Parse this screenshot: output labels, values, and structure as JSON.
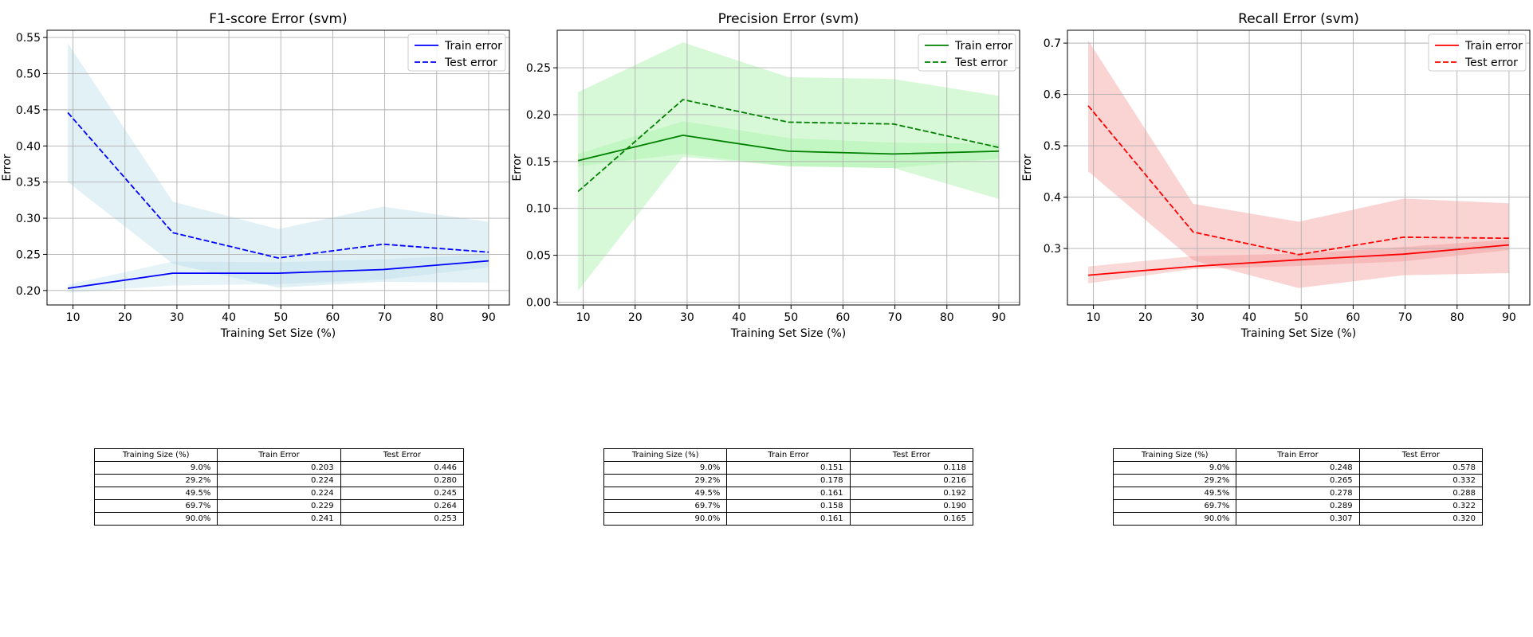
{
  "chart_data": [
    {
      "type": "line",
      "title": "F1-score Error (svm)",
      "xlabel": "Training Set Size (%)",
      "ylabel": "Error",
      "xlim": [
        5,
        94
      ],
      "ylim": [
        0.18,
        0.56
      ],
      "xticks": [
        10,
        20,
        30,
        40,
        50,
        60,
        70,
        80,
        90
      ],
      "yticks": [
        0.2,
        0.25,
        0.3,
        0.35,
        0.4,
        0.45,
        0.5,
        0.55
      ],
      "ytick_labels": [
        "0.20",
        "0.25",
        "0.30",
        "0.35",
        "0.40",
        "0.45",
        "0.50",
        "0.55"
      ],
      "grid": true,
      "legend_position": "top-right",
      "x": [
        9.0,
        29.2,
        49.5,
        69.7,
        90.0
      ],
      "series": [
        {
          "name": "Train error",
          "style": "solid",
          "values": [
            0.203,
            0.224,
            0.224,
            0.229,
            0.241
          ],
          "band_lower": [
            0.197,
            0.207,
            0.209,
            0.215,
            0.232
          ],
          "band_upper": [
            0.208,
            0.24,
            0.239,
            0.243,
            0.25
          ]
        },
        {
          "name": "Test error",
          "style": "dashed",
          "values": [
            0.446,
            0.28,
            0.245,
            0.264,
            0.253
          ],
          "band_lower": [
            0.35,
            0.237,
            0.204,
            0.212,
            0.211
          ],
          "band_upper": [
            0.542,
            0.323,
            0.285,
            0.316,
            0.295
          ]
        }
      ],
      "line_color": "#0000ff",
      "band_color": "#add8e6",
      "table": {
        "headers": [
          "Training Size (%)",
          "Train Error",
          "Test Error"
        ],
        "rows": [
          [
            "9.0%",
            "0.203",
            "0.446"
          ],
          [
            "29.2%",
            "0.224",
            "0.280"
          ],
          [
            "49.5%",
            "0.224",
            "0.245"
          ],
          [
            "69.7%",
            "0.229",
            "0.264"
          ],
          [
            "90.0%",
            "0.241",
            "0.253"
          ]
        ]
      }
    },
    {
      "type": "line",
      "title": "Precision Error (svm)",
      "xlabel": "Training Set Size (%)",
      "ylabel": "Error",
      "xlim": [
        5,
        94
      ],
      "ylim": [
        -0.003,
        0.29
      ],
      "xticks": [
        10,
        20,
        30,
        40,
        50,
        60,
        70,
        80,
        90
      ],
      "yticks": [
        0,
        0.05,
        0.1,
        0.15,
        0.2,
        0.25
      ],
      "ytick_labels": [
        "0.00",
        "0.05",
        "0.10",
        "0.15",
        "0.20",
        "0.25"
      ],
      "grid": true,
      "legend_position": "top-right",
      "x": [
        9.0,
        29.2,
        49.5,
        69.7,
        90.0
      ],
      "series": [
        {
          "name": "Train error",
          "style": "solid",
          "values": [
            0.151,
            0.178,
            0.161,
            0.158,
            0.161
          ],
          "band_lower": [
            0.145,
            0.158,
            0.145,
            0.143,
            0.153
          ],
          "band_upper": [
            0.158,
            0.193,
            0.175,
            0.17,
            0.169
          ]
        },
        {
          "name": "Test error",
          "style": "dashed",
          "values": [
            0.118,
            0.216,
            0.192,
            0.19,
            0.165
          ],
          "band_lower": [
            0.012,
            0.155,
            0.145,
            0.143,
            0.11
          ],
          "band_upper": [
            0.224,
            0.277,
            0.24,
            0.238,
            0.22
          ]
        }
      ],
      "line_color": "#008000",
      "band_color": "#90ee90",
      "table": {
        "headers": [
          "Training Size (%)",
          "Train Error",
          "Test Error"
        ],
        "rows": [
          [
            "9.0%",
            "0.151",
            "0.118"
          ],
          [
            "29.2%",
            "0.178",
            "0.216"
          ],
          [
            "49.5%",
            "0.161",
            "0.192"
          ],
          [
            "69.7%",
            "0.158",
            "0.190"
          ],
          [
            "90.0%",
            "0.161",
            "0.165"
          ]
        ]
      }
    },
    {
      "type": "line",
      "title": "Recall Error (svm)",
      "xlabel": "Training Set Size (%)",
      "ylabel": "Error",
      "xlim": [
        5,
        94
      ],
      "ylim": [
        0.19,
        0.725
      ],
      "xticks": [
        10,
        20,
        30,
        40,
        50,
        60,
        70,
        80,
        90
      ],
      "yticks": [
        0.3,
        0.4,
        0.5,
        0.6,
        0.7
      ],
      "ytick_labels": [
        "0.3",
        "0.4",
        "0.5",
        "0.6",
        "0.7"
      ],
      "grid": true,
      "legend_position": "top-right",
      "x": [
        9.0,
        29.2,
        49.5,
        69.7,
        90.0
      ],
      "series": [
        {
          "name": "Train error",
          "style": "solid",
          "values": [
            0.248,
            0.265,
            0.278,
            0.289,
            0.307
          ],
          "band_lower": [
            0.232,
            0.26,
            0.266,
            0.275,
            0.297
          ],
          "band_upper": [
            0.265,
            0.285,
            0.29,
            0.303,
            0.317
          ]
        },
        {
          "name": "Test error",
          "style": "dashed",
          "values": [
            0.578,
            0.332,
            0.288,
            0.322,
            0.32
          ],
          "band_lower": [
            0.45,
            0.277,
            0.223,
            0.248,
            0.252
          ],
          "band_upper": [
            0.705,
            0.387,
            0.352,
            0.397,
            0.388
          ]
        }
      ],
      "line_color": "#ff0000",
      "band_color": "#f08080",
      "table": {
        "headers": [
          "Training Size (%)",
          "Train Error",
          "Test Error"
        ],
        "rows": [
          [
            "9.0%",
            "0.248",
            "0.578"
          ],
          [
            "29.2%",
            "0.265",
            "0.332"
          ],
          [
            "49.5%",
            "0.278",
            "0.288"
          ],
          [
            "69.7%",
            "0.289",
            "0.322"
          ],
          [
            "90.0%",
            "0.307",
            "0.320"
          ]
        ]
      }
    }
  ]
}
